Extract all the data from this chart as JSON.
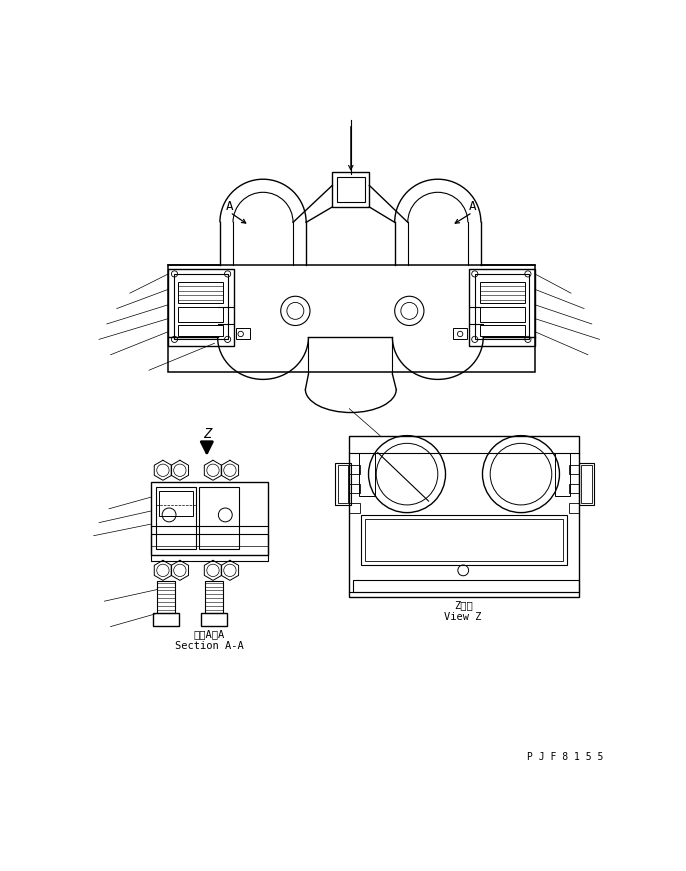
{
  "bg_color": "#ffffff",
  "line_color": "#000000",
  "fig_width": 6.86,
  "fig_height": 8.71,
  "dpi": 100,
  "part_number": "P J F 8 1 5 5",
  "label_section_aa_jp": "断面A－A",
  "label_section_aa_en": "Section A-A",
  "label_view_z_jp": "Z　視",
  "label_view_z_en": "View Z",
  "label_z": "Z",
  "label_A": "A"
}
